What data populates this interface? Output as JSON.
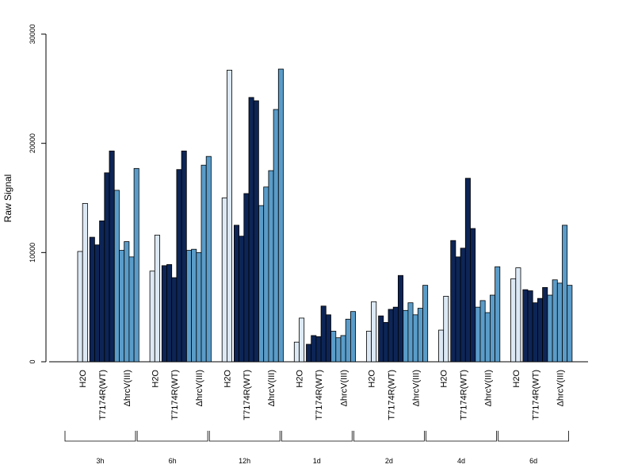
{
  "chart_data": {
    "type": "bar",
    "ylabel": "Raw Signal",
    "ylim": [
      0,
      30000
    ],
    "yticks": [
      0,
      10000,
      20000,
      30000
    ],
    "treatments": [
      "H2O",
      "T7174R(WT)",
      "ΔhrcV(III)"
    ],
    "colors": {
      "H2O": "#dce9f5",
      "T7174R(WT)": "#0d2556",
      "ΔhrcV(III)": "#5a9cc9"
    },
    "groups": [
      {
        "label": "3h",
        "bars": {
          "H2O": [
            10100,
            14500
          ],
          "T7174R(WT)": [
            11400,
            10700,
            12900,
            17300,
            19300
          ],
          "ΔhrcV(III)": [
            15700,
            10200,
            11000,
            9600,
            17700
          ]
        }
      },
      {
        "label": "6h",
        "bars": {
          "H2O": [
            8300,
            11600
          ],
          "T7174R(WT)": [
            8800,
            8900,
            7700,
            17600,
            19300
          ],
          "ΔhrcV(III)": [
            10200,
            10300,
            10000,
            18000,
            18800
          ]
        }
      },
      {
        "label": "12h",
        "bars": {
          "H2O": [
            15000,
            26700
          ],
          "T7174R(WT)": [
            12500,
            11500,
            15400,
            24200,
            23900
          ],
          "ΔhrcV(III)": [
            14300,
            16000,
            17500,
            23100,
            26800
          ]
        }
      },
      {
        "label": "1d",
        "bars": {
          "H2O": [
            1800,
            4000
          ],
          "T7174R(WT)": [
            1600,
            2400,
            2300,
            5100,
            4300
          ],
          "ΔhrcV(III)": [
            2800,
            2200,
            2400,
            3900,
            4600
          ]
        }
      },
      {
        "label": "2d",
        "bars": {
          "H2O": [
            2800,
            5500
          ],
          "T7174R(WT)": [
            4200,
            3600,
            4800,
            5000,
            7900
          ],
          "ΔhrcV(III)": [
            4700,
            5400,
            4300,
            4900,
            7000
          ]
        }
      },
      {
        "label": "4d",
        "bars": {
          "H2O": [
            2900,
            6000
          ],
          "T7174R(WT)": [
            11100,
            9600,
            10400,
            16800,
            12200
          ],
          "ΔhrcV(III)": [
            5000,
            5600,
            4500,
            6100,
            8700
          ]
        }
      },
      {
        "label": "6d",
        "bars": {
          "H2O": [
            7600,
            8600
          ],
          "T7174R(WT)": [
            6600,
            6500,
            5400,
            5800,
            6800
          ],
          "ΔhrcV(III)": [
            6100,
            7500,
            7200,
            12500,
            7000
          ]
        }
      }
    ]
  }
}
